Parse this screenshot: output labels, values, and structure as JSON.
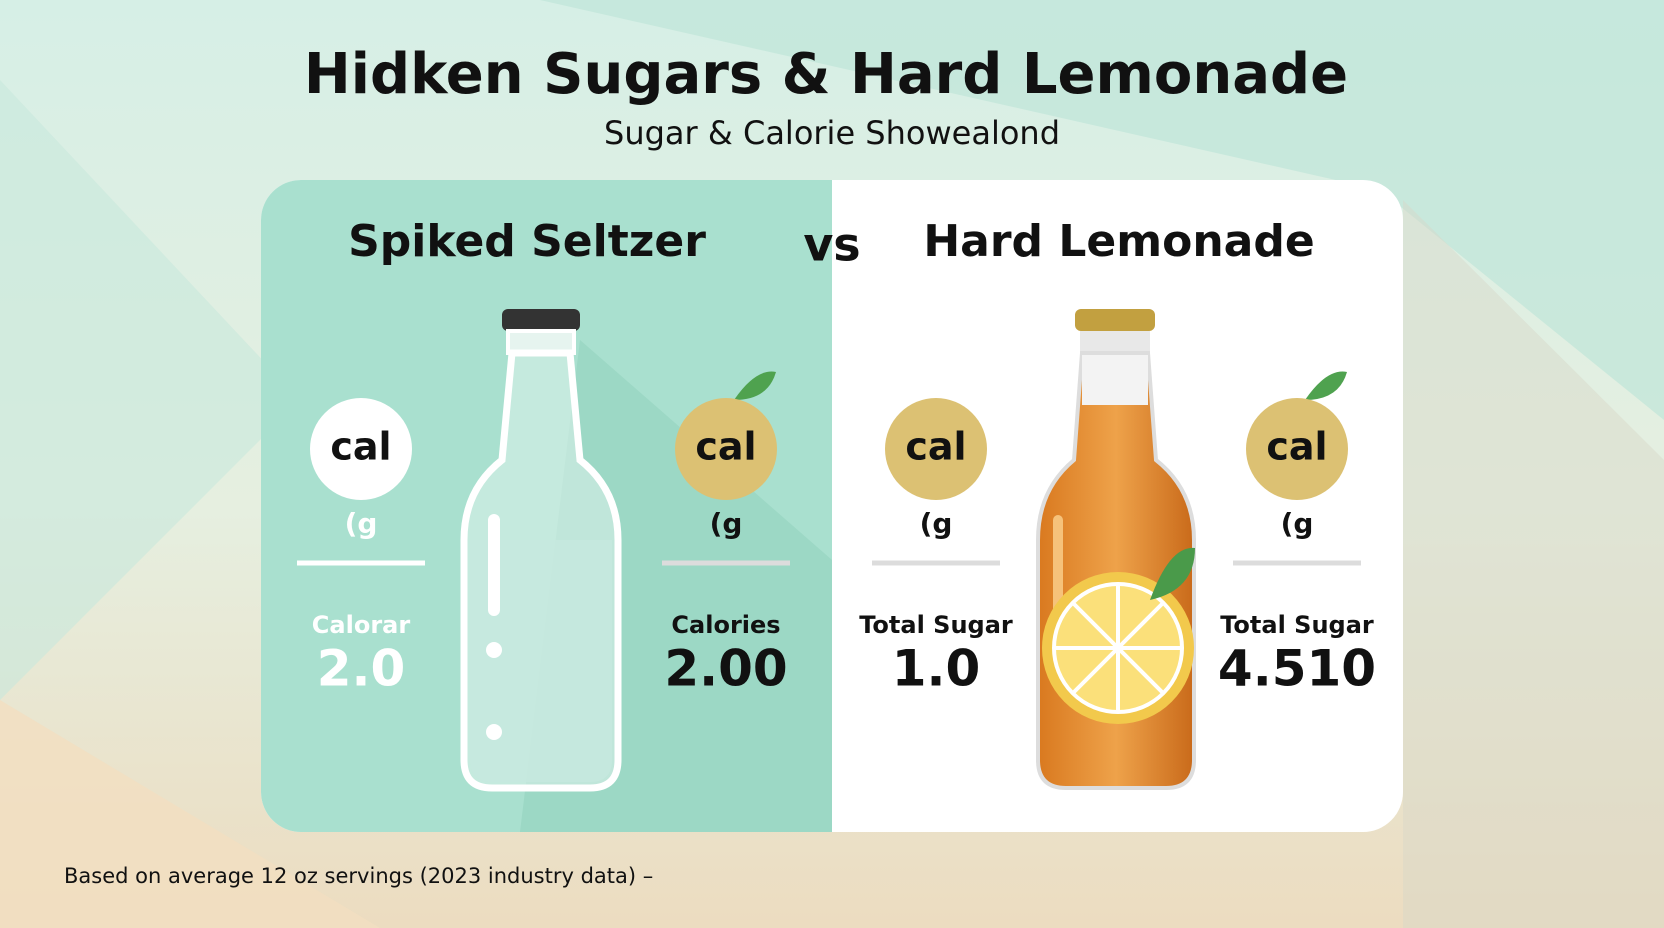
{
  "header": {
    "title": "Hidken Sugars & Hard Lemonade",
    "subtitle": "Sugar & Calorie Showealond"
  },
  "vs": "vs",
  "panels": [
    {
      "heading": "Spiked Seltzer",
      "stats": [
        {
          "badge": "cal",
          "unit": "(g",
          "label": "Calorar",
          "value": "2.0"
        },
        {
          "badge": "cal",
          "unit": "(g",
          "label": "Calories",
          "value": "2.00"
        }
      ]
    },
    {
      "heading": "Hard Lemonade",
      "stats": [
        {
          "badge": "cal",
          "unit": "(g",
          "label": "Total Sugar",
          "value": "1.0"
        },
        {
          "badge": "cal",
          "unit": "(g",
          "label": "Total Sugar",
          "value": "4.510"
        }
      ]
    }
  ],
  "footnote": "Based on average 12 oz servings (2023 industry data) –"
}
